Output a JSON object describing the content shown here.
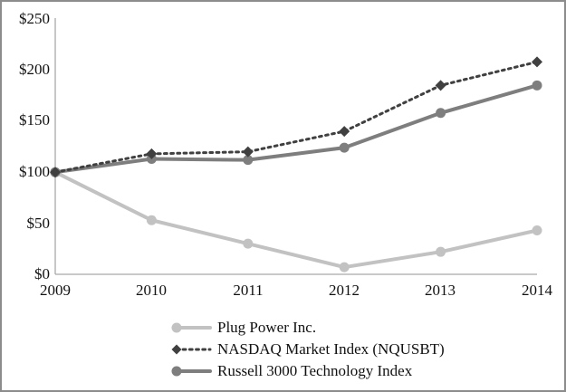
{
  "chart_data": {
    "type": "line",
    "title": "",
    "xlabel": "",
    "ylabel": "",
    "x_tick_labels": [
      "2009",
      "2010",
      "2011",
      "2012",
      "2013",
      "2014"
    ],
    "y_tick_labels": [
      "$0",
      "$50",
      "$100",
      "$150",
      "$200",
      "$250"
    ],
    "ylim": [
      0,
      250
    ],
    "grid": false,
    "legend_position": "bottom-center",
    "axis_color": "#a9a9a9",
    "series": [
      {
        "name": "Plug Power Inc.",
        "values": [
          100,
          53,
          30,
          7,
          22,
          43
        ],
        "color": "#c2c2c2",
        "line_style": "solid",
        "marker": "circle"
      },
      {
        "name": "NASDAQ Market Index (NQUSBT)",
        "values": [
          100,
          118,
          120,
          140,
          185,
          208
        ],
        "color": "#404040",
        "line_style": "dotted",
        "marker": "diamond"
      },
      {
        "name": "Russell 3000 Technology Index",
        "values": [
          100,
          113,
          112,
          124,
          158,
          185
        ],
        "color": "#7e7e7e",
        "line_style": "solid",
        "marker": "circle"
      }
    ]
  }
}
